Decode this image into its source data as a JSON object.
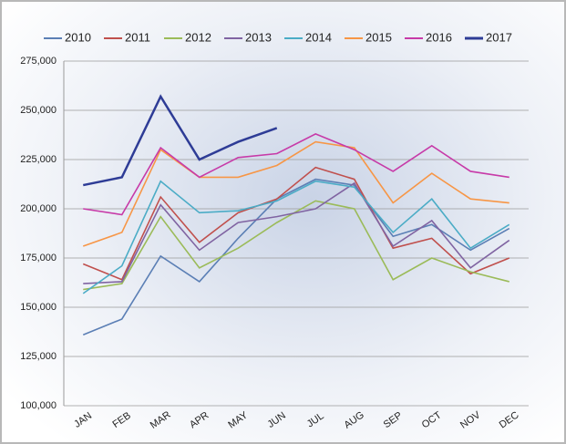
{
  "chart_data": {
    "type": "line",
    "categories": [
      "JAN",
      "FEB",
      "MAR",
      "APR",
      "MAY",
      "JUN",
      "JUL",
      "AUG",
      "SEP",
      "OCT",
      "NOV",
      "DEC"
    ],
    "series": [
      {
        "name": "2010",
        "color": "#5b7fb5",
        "values": [
          136000,
          144000,
          176000,
          163000,
          185000,
          205000,
          215000,
          212000,
          186000,
          192000,
          179000,
          190000
        ]
      },
      {
        "name": "2011",
        "color": "#c0504d",
        "values": [
          172000,
          164000,
          206000,
          183000,
          198000,
          205000,
          221000,
          215000,
          180000,
          185000,
          167000,
          175000
        ]
      },
      {
        "name": "2012",
        "color": "#9bbb59",
        "values": [
          159000,
          162000,
          196000,
          170000,
          180000,
          193000,
          204000,
          200000,
          164000,
          175000,
          168000,
          163000
        ]
      },
      {
        "name": "2013",
        "color": "#8064a2",
        "values": [
          162000,
          163000,
          202000,
          179000,
          193000,
          196000,
          200000,
          213000,
          181000,
          194000,
          170000,
          184000
        ]
      },
      {
        "name": "2014",
        "color": "#4bacc6",
        "values": [
          157000,
          171000,
          214000,
          198000,
          199000,
          204000,
          214000,
          211000,
          188000,
          205000,
          180000,
          192000
        ]
      },
      {
        "name": "2015",
        "color": "#f79646",
        "values": [
          181000,
          188000,
          230000,
          216000,
          216000,
          222000,
          234000,
          231000,
          203000,
          218000,
          205000,
          203000
        ]
      },
      {
        "name": "2016",
        "color": "#c73aa8",
        "values": [
          200000,
          197000,
          231000,
          216000,
          226000,
          228000,
          238000,
          230000,
          219000,
          232000,
          219000,
          216000
        ]
      },
      {
        "name": "2017",
        "color": "#2e3c96",
        "values": [
          212000,
          216000,
          257000,
          225000,
          234000,
          241000,
          null,
          null,
          null,
          null,
          null,
          null
        ]
      }
    ],
    "ylim": [
      100000,
      275000
    ],
    "yticks": [
      {
        "value": 100000,
        "label": "100,000"
      },
      {
        "value": 125000,
        "label": "125,000"
      },
      {
        "value": 150000,
        "label": "150,000"
      },
      {
        "value": 175000,
        "label": "175,000"
      },
      {
        "value": 200000,
        "label": "200,000"
      },
      {
        "value": 225000,
        "label": "225,000"
      },
      {
        "value": 250000,
        "label": "250,000"
      },
      {
        "value": 275000,
        "label": "275,000"
      }
    ],
    "grid": true
  }
}
